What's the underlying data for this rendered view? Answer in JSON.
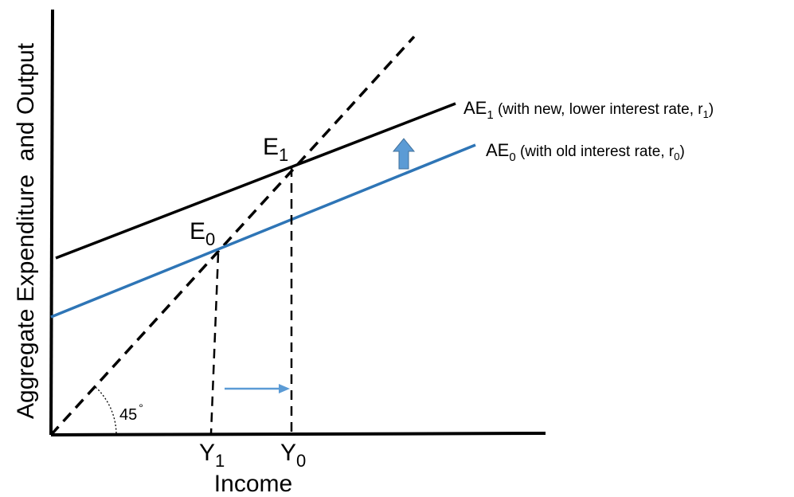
{
  "axes": {
    "y_label": "Aggregate Expenditure  and Output",
    "x_label": "Income"
  },
  "angle_label": {
    "value": "45",
    "degree_mark": "°"
  },
  "curves": {
    "ae1": {
      "base": "AE",
      "sub": "1",
      "description": " (with new, lower interest rate, r",
      "rate_sub": "1",
      "close": ")",
      "color": "#000000"
    },
    "ae0": {
      "base": "AE",
      "sub": "0",
      "description": " (with old interest rate, r",
      "rate_sub": "0",
      "close": ")",
      "color": "#2e75b6"
    }
  },
  "equilibria": {
    "e1": {
      "base": "E",
      "sub": "1"
    },
    "e0": {
      "base": "E",
      "sub": "0"
    }
  },
  "income_levels": {
    "y1": {
      "base": "Y",
      "sub": "1"
    },
    "y0": {
      "base": "Y",
      "sub": "0"
    }
  },
  "colors": {
    "axis": "#000000",
    "shift_arrow": "#5b9bd5",
    "income_arrow": "#5b9bd5"
  }
}
